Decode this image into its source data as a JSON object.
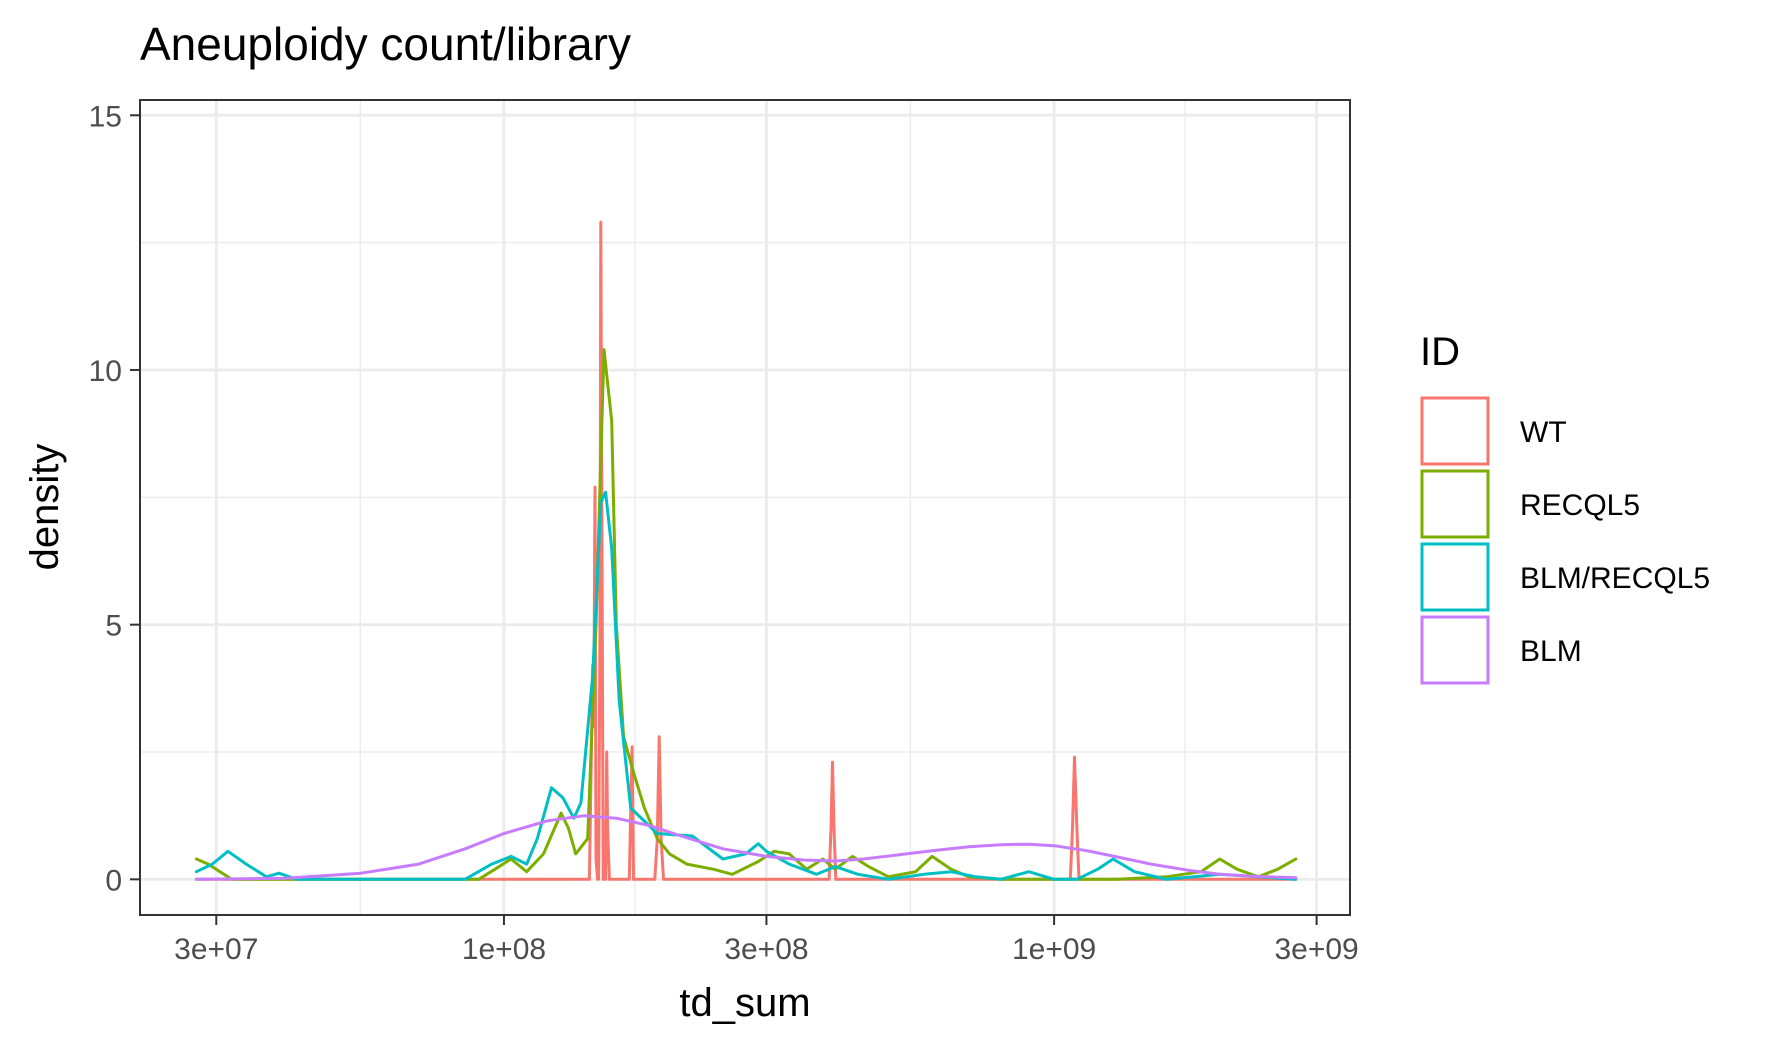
{
  "chart_data": {
    "type": "line",
    "title": "Aneuploidy count/library",
    "xlabel": "td_sum",
    "ylabel": "density",
    "x_scale": "log10",
    "xlim": [
      21800000,
      3450000000
    ],
    "ylim": [
      -0.7,
      15.3
    ],
    "x_ticks": [
      30000000,
      100000000,
      300000000,
      1000000000,
      3000000000
    ],
    "x_tick_labels": [
      "3e+07",
      "1e+08",
      "3e+08",
      "1e+09",
      "3e+09"
    ],
    "x_minor_ticks": [
      54800000,
      173000000,
      548000000,
      1730000000
    ],
    "y_ticks": [
      0,
      5,
      10,
      15
    ],
    "y_tick_labels": [
      "0",
      "5",
      "10",
      "15"
    ],
    "y_minor_ticks": [
      2.5,
      7.5,
      12.5
    ],
    "grid": true,
    "legend_position": "right",
    "legend_title": "ID",
    "series": [
      {
        "name": "WT",
        "color": "#F8766D",
        "x": [
          27600000,
          130000000,
          143000000,
          145000000,
          145600000,
          146400000,
          147000000,
          148000000,
          148600000,
          149400000,
          150000000,
          151500000,
          152300000,
          153000000,
          153700000,
          154300000,
          155500000,
          157000000,
          169000000,
          171000000,
          172000000,
          173500000,
          175000000,
          188000000,
          190000000,
          191500000,
          193000000,
          195000000,
          390000000,
          393000000,
          395500000,
          398000000,
          401000000,
          1070000000,
          1080000000,
          1089000000,
          1100000000,
          1110000000,
          2750000000
        ],
        "y": [
          0,
          0,
          0,
          4.2,
          3.0,
          7.7,
          0.4,
          0,
          0,
          4.5,
          12.9,
          0,
          0,
          0,
          2.5,
          1.0,
          0,
          0,
          0,
          2.6,
          0,
          0,
          0,
          0,
          0.8,
          2.8,
          0.8,
          0,
          0,
          1.0,
          2.3,
          1.0,
          0,
          0,
          1.0,
          2.4,
          1.0,
          0,
          0
        ]
      },
      {
        "name": "RECQL5",
        "color": "#7CAE00",
        "x": [
          27600000,
          29000000,
          32000000,
          60000000,
          90000000,
          98000000,
          103000000,
          110000000,
          118000000,
          127000000,
          131000000,
          135000000,
          142000000,
          147000000,
          152000000,
          157000000,
          160000000,
          165000000,
          172000000,
          180000000,
          190000000,
          200000000,
          215000000,
          240000000,
          260000000,
          290000000,
          310000000,
          330000000,
          355000000,
          380000000,
          400000000,
          430000000,
          460000000,
          500000000,
          560000000,
          600000000,
          650000000,
          700000000,
          800000000,
          1000000000,
          1300000000,
          1600000000,
          1850000000,
          2000000000,
          2150000000,
          2350000000,
          2550000000,
          2750000000
        ],
        "y": [
          0.4,
          0.3,
          0,
          0,
          0,
          0.25,
          0.4,
          0.15,
          0.5,
          1.3,
          1.0,
          0.5,
          0.8,
          5.0,
          10.4,
          9.0,
          5.0,
          2.8,
          2.1,
          1.4,
          0.8,
          0.5,
          0.3,
          0.2,
          0.1,
          0.35,
          0.55,
          0.5,
          0.2,
          0.4,
          0.2,
          0.45,
          0.25,
          0.05,
          0.15,
          0.45,
          0.2,
          0.05,
          0.0,
          0.0,
          0.0,
          0.05,
          0.15,
          0.4,
          0.2,
          0.05,
          0.2,
          0.4
        ]
      },
      {
        "name": "BLM/RECQL5",
        "color": "#00BFC4",
        "x": [
          27600000,
          29500000,
          31500000,
          34000000,
          37000000,
          39000000,
          42000000,
          60000000,
          85000000,
          95000000,
          103000000,
          110000000,
          115000000,
          122000000,
          128000000,
          134000000,
          138000000,
          145000000,
          150000000,
          153000000,
          157000000,
          162000000,
          170000000,
          190000000,
          220000000,
          250000000,
          275000000,
          290000000,
          300000000,
          330000000,
          370000000,
          400000000,
          440000000,
          500000000,
          580000000,
          650000000,
          720000000,
          800000000,
          900000000,
          1000000000,
          1100000000,
          1200000000,
          1280000000,
          1400000000,
          1600000000,
          1800000000,
          2000000000,
          2750000000
        ],
        "y": [
          0.15,
          0.3,
          0.55,
          0.3,
          0.05,
          0.12,
          0.0,
          0.0,
          0.0,
          0.3,
          0.45,
          0.3,
          0.8,
          1.8,
          1.6,
          1.2,
          1.5,
          4.0,
          7.4,
          7.6,
          6.5,
          3.5,
          1.4,
          0.9,
          0.85,
          0.4,
          0.5,
          0.7,
          0.55,
          0.3,
          0.1,
          0.25,
          0.1,
          0.0,
          0.1,
          0.15,
          0.05,
          0.0,
          0.15,
          0.0,
          0.0,
          0.2,
          0.4,
          0.15,
          0.0,
          0.05,
          0.1,
          0.0
        ]
      },
      {
        "name": "BLM",
        "color": "#C77CFF",
        "x": [
          27600000,
          40000000,
          55000000,
          70000000,
          85000000,
          100000000,
          120000000,
          140000000,
          160000000,
          185000000,
          210000000,
          250000000,
          300000000,
          350000000,
          400000000,
          450000000,
          520000000,
          600000000,
          700000000,
          800000000,
          900000000,
          1000000000,
          1150000000,
          1300000000,
          1500000000,
          1750000000,
          2000000000,
          2300000000,
          2750000000
        ],
        "y": [
          0.0,
          0.02,
          0.12,
          0.3,
          0.6,
          0.9,
          1.15,
          1.25,
          1.2,
          1.05,
          0.85,
          0.6,
          0.45,
          0.38,
          0.36,
          0.4,
          0.48,
          0.56,
          0.64,
          0.68,
          0.69,
          0.66,
          0.56,
          0.44,
          0.3,
          0.18,
          0.1,
          0.06,
          0.03
        ]
      }
    ]
  }
}
